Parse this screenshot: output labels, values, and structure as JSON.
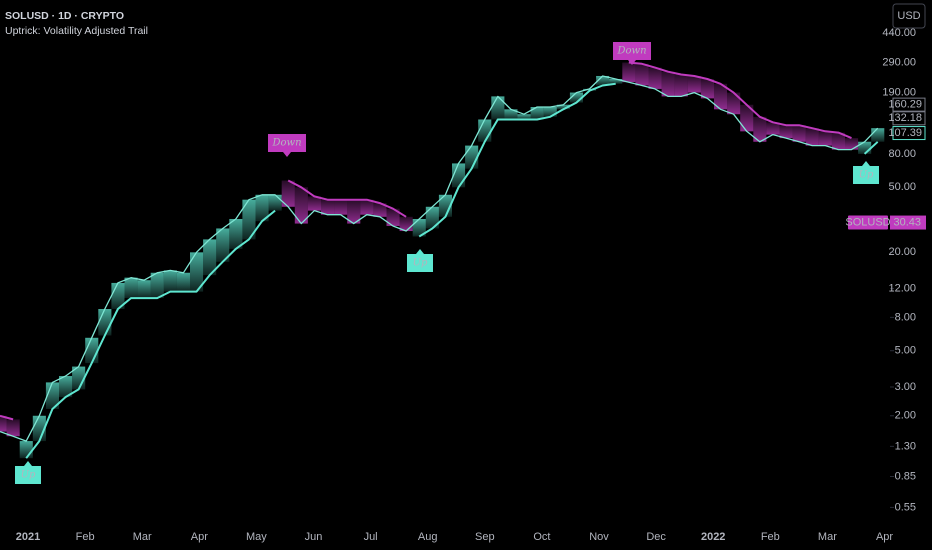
{
  "chart_data": {
    "type": "line",
    "symbol_title": "SOLUSD · 1D · CRYPTO",
    "indicator_title": "Uptrick: Volatility Adjusted Trail",
    "currency_button": "USD",
    "log_scale": true,
    "ylim": [
      0.4,
      700
    ],
    "yticks": [
      {
        "value": 0.55,
        "label": "0.55"
      },
      {
        "value": 0.85,
        "label": "0.85"
      },
      {
        "value": 1.3,
        "label": "1.30"
      },
      {
        "value": 2,
        "label": "2.00"
      },
      {
        "value": 3,
        "label": "3.00"
      },
      {
        "value": 5,
        "label": "5.00"
      },
      {
        "value": 8,
        "label": "8.00"
      },
      {
        "value": 12,
        "label": "12.00"
      },
      {
        "value": 20,
        "label": "20.00"
      },
      {
        "value": 50,
        "label": "50.00"
      },
      {
        "value": 80,
        "label": "80.00"
      },
      {
        "value": 190,
        "label": "190.00"
      },
      {
        "value": 290,
        "label": "290.00"
      },
      {
        "value": 440,
        "label": "440.00"
      }
    ],
    "x_labels": [
      "2021",
      "Feb",
      "Mar",
      "Apr",
      "May",
      "Jun",
      "Jul",
      "Aug",
      "Sep",
      "Oct",
      "Nov",
      "Dec",
      "2022",
      "Feb",
      "Mar",
      "Apr"
    ],
    "series": [
      {
        "color": "#7fe6d4",
        "values": [
          1.6,
          1.5,
          1.4,
          2.0,
          3.2,
          3.5,
          4.0,
          6.0,
          9.0,
          13.0,
          14.0,
          13.5,
          15.0,
          15.5,
          15.0,
          20,
          24,
          28,
          32,
          42,
          45,
          45,
          38,
          30,
          36,
          34,
          34,
          30,
          34,
          33,
          29,
          27,
          32,
          38,
          45,
          70,
          90,
          130,
          180,
          150,
          140,
          155,
          155,
          160,
          190,
          200,
          240,
          230,
          220,
          210,
          200,
          180,
          180,
          190,
          175,
          150,
          140,
          110,
          95,
          105,
          100,
          95,
          90,
          90,
          85,
          85,
          95,
          115
        ]
      },
      {
        "color": "#5ee6d0",
        "values": [
          null,
          null,
          1.1,
          1.4,
          2.2,
          2.6,
          2.9,
          4.2,
          6.2,
          9.0,
          10.5,
          10.5,
          10.5,
          11.5,
          11.5,
          11.5,
          14.5,
          17.5,
          21,
          24,
          31,
          36,
          null,
          null,
          null,
          null,
          null,
          null,
          null,
          null,
          null,
          null,
          25,
          28,
          33,
          50,
          65,
          95,
          130,
          130,
          130,
          130,
          135,
          150,
          165,
          195,
          210,
          215,
          null,
          null,
          null,
          null,
          null,
          null,
          null,
          null,
          null,
          null,
          null,
          null,
          null,
          null,
          null,
          null,
          null,
          null,
          80,
          95
        ]
      },
      {
        "color": "#c03bbf",
        "values": [
          2.0,
          1.9,
          null,
          null,
          null,
          null,
          null,
          null,
          null,
          null,
          null,
          null,
          null,
          null,
          null,
          null,
          null,
          null,
          null,
          null,
          null,
          null,
          55,
          50,
          44,
          42,
          42,
          42,
          42,
          40,
          37,
          33,
          null,
          null,
          null,
          null,
          null,
          null,
          null,
          null,
          null,
          null,
          null,
          null,
          null,
          null,
          null,
          null,
          290,
          285,
          270,
          255,
          245,
          240,
          230,
          215,
          190,
          160,
          135,
          125,
          120,
          120,
          115,
          110,
          108,
          100,
          null,
          null
        ]
      }
    ],
    "markers": [
      160.29,
      132.18,
      107.39
    ],
    "last_price": {
      "name": "SOLUSD",
      "value": 30.43
    },
    "signals": [
      "Up",
      "Down",
      "Up",
      "Down",
      "Up"
    ]
  }
}
